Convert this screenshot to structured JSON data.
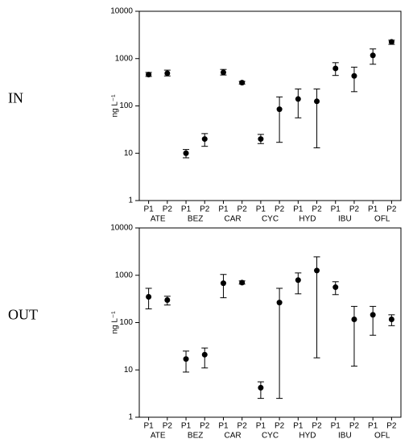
{
  "chart_data": [
    {
      "type": "errorbar",
      "panel_label": "IN",
      "ylabel": "ng L⁻¹",
      "log": true,
      "color": "#000000",
      "ylim": [
        1,
        10000
      ],
      "yticks": [
        1,
        10,
        100,
        1000,
        10000
      ],
      "categories": [
        "P1",
        "P2",
        "P1",
        "P2",
        "P1",
        "P2",
        "P1",
        "P2",
        "P1",
        "P2",
        "P1",
        "P2",
        "P1",
        "P2"
      ],
      "groups": [
        "ATE",
        "BEZ",
        "CAR",
        "CYC",
        "HYD",
        "IBU",
        "OFL"
      ],
      "values": [
        460,
        490,
        10,
        20,
        510,
        310,
        20,
        85,
        140,
        125,
        620,
        430,
        1170,
        2250
      ],
      "lower": [
        420,
        430,
        8,
        14,
        450,
        290,
        16,
        17,
        56,
        13,
        440,
        200,
        760,
        2000
      ],
      "upper": [
        510,
        570,
        12,
        26,
        590,
        330,
        25,
        155,
        228,
        228,
        820,
        660,
        1600,
        2450
      ]
    },
    {
      "type": "errorbar",
      "panel_label": "OUT",
      "ylabel": "ng L⁻¹",
      "log": true,
      "color": "#000000",
      "ylim": [
        1,
        10000
      ],
      "yticks": [
        1,
        10,
        100,
        1000,
        10000
      ],
      "categories": [
        "P1",
        "P2",
        "P1",
        "P2",
        "P1",
        "P2",
        "P1",
        "P2",
        "P1",
        "P2",
        "P1",
        "P2",
        "P1",
        "P2"
      ],
      "groups": [
        "ATE",
        "BEZ",
        "CAR",
        "CYC",
        "HYD",
        "IBU",
        "OFL"
      ],
      "values": [
        350,
        300,
        17,
        21,
        680,
        700,
        4.2,
        265,
        790,
        1260,
        560,
        117,
        146,
        117
      ],
      "lower": [
        195,
        235,
        9,
        11,
        335,
        650,
        2.5,
        2.5,
        405,
        18,
        390,
        12,
        54,
        86
      ],
      "upper": [
        530,
        360,
        25,
        29,
        1040,
        760,
        5.6,
        530,
        1120,
        2450,
        730,
        220,
        220,
        146
      ]
    }
  ]
}
